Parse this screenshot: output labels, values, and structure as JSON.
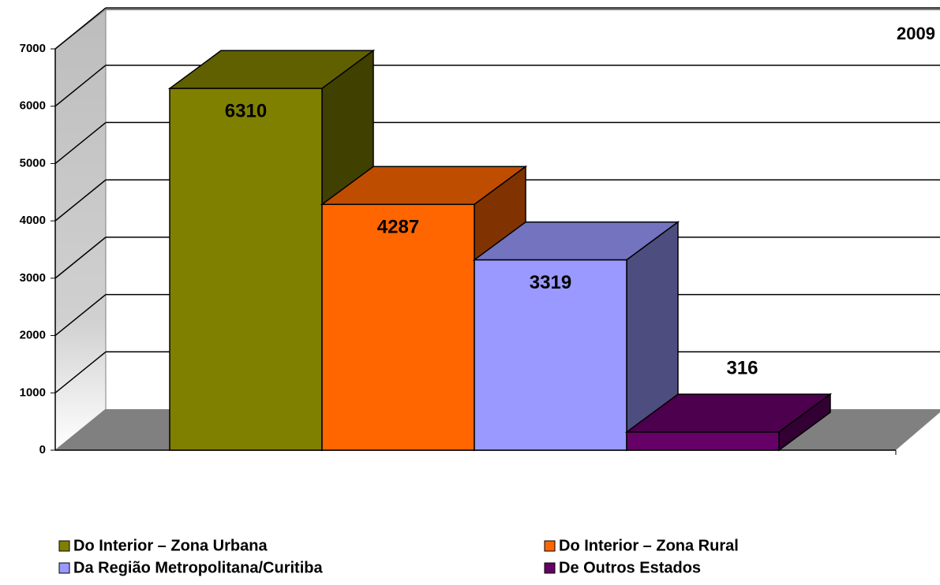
{
  "chart_data": {
    "type": "bar3d",
    "categories": [
      "2009"
    ],
    "series": [
      {
        "name": "Do Interior – Zona Urbana",
        "color": "#808000",
        "values": [
          6310
        ]
      },
      {
        "name": "Do Interior – Zona Rural",
        "color": "#ff6600",
        "values": [
          4287
        ]
      },
      {
        "name": "Da  Região Metropolitana/Curitiba",
        "color": "#9999ff",
        "values": [
          3319
        ]
      },
      {
        "name": "De Outros Estados",
        "color": "#660066",
        "values": [
          316
        ]
      }
    ],
    "ylim": [
      0,
      7000
    ],
    "yticks": [
      0,
      1000,
      2000,
      3000,
      4000,
      5000,
      6000,
      7000
    ],
    "grid": true
  }
}
